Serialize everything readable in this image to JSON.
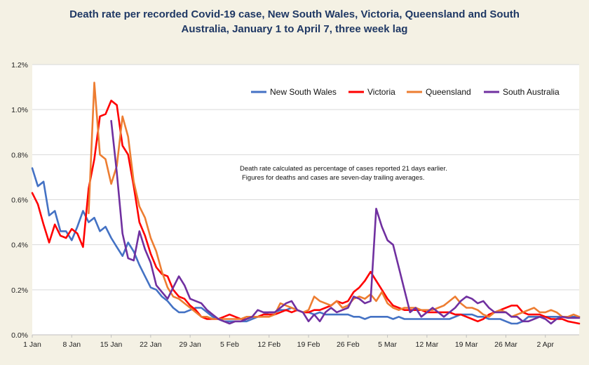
{
  "chart_data": {
    "type": "line",
    "title": "Death rate per recorded Covid-19 case, New South Wales, Victoria, Queensland and South Australia, January 1 to April 7, three week lag",
    "title_lines": [
      "Death rate per recorded Covid-19 case, New South Wales, Victoria, Queensland and South",
      "Australia, January 1 to April 7, three week lag"
    ],
    "xlabel": "",
    "ylabel": "",
    "x_ticks": [
      "1 Jan",
      "8 Jan",
      "15 Jan",
      "22 Jan",
      "29 Jan",
      "5 Feb",
      "12 Feb",
      "19 Feb",
      "26 Feb",
      "5 Mar",
      "12 Mar",
      "19 Mar",
      "26 Mar",
      "2 Apr"
    ],
    "y_ticks": [
      "0.0%",
      "0.2%",
      "0.4%",
      "0.6%",
      "0.8%",
      "1.0%",
      "1.2%"
    ],
    "ylim": [
      0,
      1.2
    ],
    "x_range_days": [
      0,
      97
    ],
    "grid": "horizontal",
    "legend_position": "top-right",
    "annotation": [
      "Death rate calculated as percentage of cases reported 21 days earlier.",
      "Figures for deaths and cases are seven-day trailing averages."
    ],
    "series": [
      {
        "name": "New South Wales",
        "color": "#4472c4",
        "x": [
          0,
          1,
          2,
          3,
          4,
          5,
          6,
          7,
          8,
          9,
          10,
          11,
          12,
          13,
          14,
          15,
          16,
          17,
          18,
          19,
          20,
          21,
          22,
          23,
          24,
          25,
          26,
          27,
          28,
          29,
          30,
          31,
          32,
          33,
          34,
          35,
          36,
          37,
          38,
          39,
          40,
          41,
          42,
          43,
          44,
          45,
          46,
          47,
          48,
          49,
          50,
          51,
          52,
          53,
          54,
          55,
          56,
          57,
          58,
          59,
          60,
          61,
          62,
          63,
          64,
          65,
          66,
          67,
          68,
          69,
          70,
          71,
          72,
          73,
          74,
          75,
          76,
          77,
          78,
          79,
          80,
          81,
          82,
          83,
          84,
          85,
          86,
          87,
          88,
          89,
          90,
          91,
          92,
          93,
          94,
          95,
          96,
          97
        ],
        "values": [
          0.74,
          0.66,
          0.68,
          0.53,
          0.55,
          0.46,
          0.46,
          0.42,
          0.48,
          0.55,
          0.5,
          0.52,
          0.46,
          0.48,
          0.43,
          0.39,
          0.35,
          0.41,
          0.37,
          0.31,
          0.26,
          0.21,
          0.2,
          0.17,
          0.15,
          0.12,
          0.1,
          0.1,
          0.11,
          0.12,
          0.12,
          0.1,
          0.08,
          0.07,
          0.06,
          0.06,
          0.06,
          0.06,
          0.06,
          0.07,
          0.08,
          0.09,
          0.1,
          0.1,
          0.11,
          0.11,
          0.12,
          0.11,
          0.1,
          0.1,
          0.09,
          0.1,
          0.09,
          0.09,
          0.09,
          0.09,
          0.09,
          0.08,
          0.08,
          0.07,
          0.08,
          0.08,
          0.08,
          0.08,
          0.07,
          0.08,
          0.07,
          0.07,
          0.07,
          0.07,
          0.07,
          0.07,
          0.07,
          0.07,
          0.07,
          0.08,
          0.09,
          0.09,
          0.09,
          0.08,
          0.08,
          0.07,
          0.07,
          0.07,
          0.06,
          0.05,
          0.05,
          0.06,
          0.08,
          0.08,
          0.08,
          0.08,
          0.08,
          0.08,
          0.08,
          0.08,
          0.08,
          0.08
        ]
      },
      {
        "name": "Victoria",
        "color": "#ff0000",
        "x": [
          0,
          1,
          2,
          3,
          4,
          5,
          6,
          7,
          8,
          9,
          10,
          11,
          12,
          13,
          14,
          15,
          16,
          17,
          18,
          19,
          20,
          21,
          22,
          23,
          24,
          25,
          26,
          27,
          28,
          29,
          30,
          31,
          32,
          33,
          34,
          35,
          36,
          37,
          38,
          39,
          40,
          41,
          42,
          43,
          44,
          45,
          46,
          47,
          48,
          49,
          50,
          51,
          52,
          53,
          54,
          55,
          56,
          57,
          58,
          59,
          60,
          61,
          62,
          63,
          64,
          65,
          66,
          67,
          68,
          69,
          70,
          71,
          72,
          73,
          74,
          75,
          76,
          77,
          78,
          79,
          80,
          81,
          82,
          83,
          84,
          85,
          86,
          87,
          88,
          89,
          90,
          91,
          92,
          93,
          94,
          95,
          96,
          97
        ],
        "values": [
          0.63,
          0.58,
          0.49,
          0.41,
          0.49,
          0.44,
          0.43,
          0.47,
          0.45,
          0.39,
          0.65,
          0.78,
          0.97,
          0.98,
          1.04,
          1.02,
          0.84,
          0.8,
          0.66,
          0.5,
          0.44,
          0.36,
          0.3,
          0.27,
          0.26,
          0.2,
          0.17,
          0.16,
          0.13,
          0.11,
          0.08,
          0.07,
          0.07,
          0.07,
          0.08,
          0.09,
          0.08,
          0.07,
          0.07,
          0.08,
          0.08,
          0.09,
          0.09,
          0.09,
          0.1,
          0.11,
          0.1,
          0.11,
          0.1,
          0.1,
          0.11,
          0.11,
          0.12,
          0.13,
          0.15,
          0.14,
          0.15,
          0.19,
          0.21,
          0.24,
          0.28,
          0.24,
          0.2,
          0.16,
          0.13,
          0.12,
          0.11,
          0.11,
          0.11,
          0.11,
          0.1,
          0.1,
          0.1,
          0.1,
          0.1,
          0.09,
          0.09,
          0.08,
          0.07,
          0.06,
          0.07,
          0.09,
          0.1,
          0.11,
          0.12,
          0.13,
          0.13,
          0.1,
          0.09,
          0.09,
          0.09,
          0.08,
          0.07,
          0.07,
          0.07,
          0.06,
          0.055,
          0.05
        ]
      },
      {
        "name": "Queensland",
        "color": "#ed7d31",
        "x": [
          10,
          11,
          12,
          13,
          14,
          15,
          16,
          17,
          18,
          19,
          20,
          21,
          22,
          23,
          24,
          25,
          26,
          27,
          28,
          29,
          30,
          31,
          32,
          33,
          34,
          35,
          36,
          37,
          38,
          39,
          40,
          41,
          42,
          43,
          44,
          45,
          46,
          47,
          48,
          49,
          50,
          51,
          52,
          53,
          54,
          55,
          56,
          57,
          58,
          59,
          60,
          61,
          62,
          63,
          64,
          65,
          66,
          67,
          68,
          69,
          70,
          71,
          72,
          73,
          74,
          75,
          76,
          77,
          78,
          79,
          80,
          81,
          82,
          83,
          84,
          85,
          86,
          87,
          88,
          89,
          90,
          91,
          92,
          93,
          94,
          95,
          96,
          97
        ],
        "values": [
          0.54,
          1.12,
          0.8,
          0.78,
          0.67,
          0.75,
          0.97,
          0.88,
          0.68,
          0.57,
          0.52,
          0.43,
          0.37,
          0.28,
          0.21,
          0.17,
          0.16,
          0.14,
          0.12,
          0.1,
          0.08,
          0.08,
          0.07,
          0.07,
          0.07,
          0.07,
          0.07,
          0.07,
          0.08,
          0.08,
          0.08,
          0.08,
          0.08,
          0.09,
          0.14,
          0.13,
          0.12,
          0.11,
          0.1,
          0.11,
          0.17,
          0.15,
          0.14,
          0.13,
          0.15,
          0.12,
          0.13,
          0.16,
          0.17,
          0.16,
          0.18,
          0.15,
          0.19,
          0.14,
          0.12,
          0.11,
          0.12,
          0.12,
          0.12,
          0.11,
          0.11,
          0.11,
          0.12,
          0.13,
          0.15,
          0.17,
          0.14,
          0.12,
          0.12,
          0.11,
          0.09,
          0.08,
          0.1,
          0.11,
          0.1,
          0.08,
          0.09,
          0.1,
          0.11,
          0.12,
          0.1,
          0.1,
          0.11,
          0.1,
          0.08,
          0.08,
          0.09,
          0.08
        ]
      },
      {
        "name": "South Australia",
        "color": "#7030a0",
        "x": [
          14,
          15,
          16,
          17,
          18,
          19,
          20,
          21,
          22,
          23,
          24,
          25,
          26,
          27,
          28,
          29,
          30,
          31,
          32,
          33,
          34,
          35,
          36,
          37,
          38,
          39,
          40,
          41,
          42,
          43,
          44,
          45,
          46,
          47,
          48,
          49,
          50,
          51,
          52,
          53,
          54,
          55,
          56,
          57,
          58,
          59,
          60,
          61,
          62,
          63,
          64,
          65,
          66,
          67,
          68,
          69,
          70,
          71,
          72,
          73,
          74,
          75,
          76,
          77,
          78,
          79,
          80,
          81,
          82,
          83,
          84,
          85,
          86,
          87,
          88,
          89,
          90,
          91,
          92,
          93,
          94,
          95,
          96,
          97
        ],
        "values": [
          0.95,
          0.72,
          0.45,
          0.34,
          0.33,
          0.46,
          0.38,
          0.32,
          0.22,
          0.19,
          0.16,
          0.21,
          0.26,
          0.22,
          0.16,
          0.15,
          0.14,
          0.11,
          0.09,
          0.07,
          0.06,
          0.05,
          0.06,
          0.06,
          0.07,
          0.08,
          0.11,
          0.1,
          0.1,
          0.1,
          0.12,
          0.14,
          0.15,
          0.11,
          0.1,
          0.06,
          0.09,
          0.06,
          0.1,
          0.12,
          0.1,
          0.11,
          0.12,
          0.17,
          0.16,
          0.14,
          0.15,
          0.56,
          0.48,
          0.42,
          0.4,
          0.3,
          0.2,
          0.1,
          0.12,
          0.08,
          0.1,
          0.12,
          0.1,
          0.08,
          0.1,
          0.12,
          0.15,
          0.17,
          0.16,
          0.14,
          0.15,
          0.12,
          0.1,
          0.1,
          0.1,
          0.08,
          0.08,
          0.06,
          0.06,
          0.07,
          0.08,
          0.07,
          0.05,
          0.07,
          0.08,
          0.075,
          0.075,
          0.075
        ]
      }
    ]
  }
}
